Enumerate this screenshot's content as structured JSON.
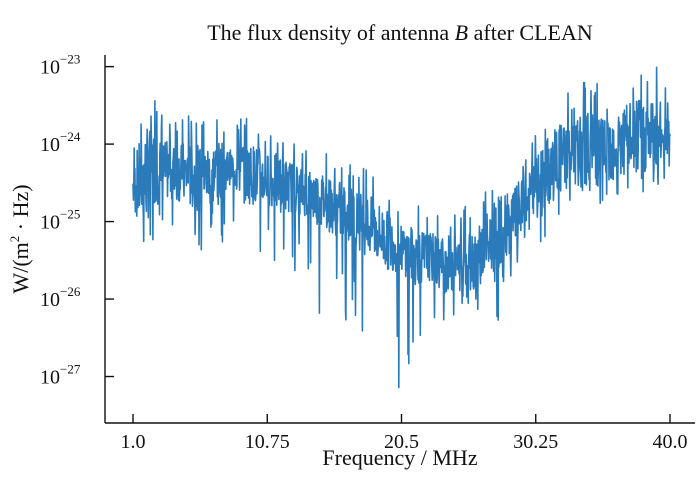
{
  "chart_data": {
    "type": "line",
    "title": "The flux density of antenna B after CLEAN",
    "title_plain": "The flux density of antenna ",
    "title_italic": "B",
    "title_after": " after CLEAN",
    "xlabel": "Frequency / MHz",
    "ylabel_prefix": "W/(m",
    "ylabel_sup": "2",
    "ylabel_suffix": " · Hz)",
    "xlim": [
      1.0,
      40.0
    ],
    "yscale": "log",
    "ylim_log10": [
      -27.6,
      -22.85
    ],
    "x_ticks": [
      {
        "value": 1.0,
        "label": "1.0"
      },
      {
        "value": 10.75,
        "label": "10.75"
      },
      {
        "value": 20.5,
        "label": "20.5"
      },
      {
        "value": 30.25,
        "label": "30.25"
      },
      {
        "value": 40.0,
        "label": "40.0"
      }
    ],
    "y_ticks": [
      {
        "exp": -23,
        "base": "10",
        "sup": "−23"
      },
      {
        "exp": -24,
        "base": "10",
        "sup": "−24"
      },
      {
        "exp": -25,
        "base": "10",
        "sup": "−25"
      },
      {
        "exp": -26,
        "base": "10",
        "sup": "−26"
      },
      {
        "exp": -27,
        "base": "10",
        "sup": "−27"
      }
    ],
    "series": [
      {
        "name": "antenna B",
        "color": "#2b7bba",
        "note": "flux density (W/(m^2·Hz)) expressed as log10 values; dense noisy trace",
        "x": [
          1.0,
          1.5,
          2.0,
          2.5,
          3.0,
          4.0,
          5.0,
          6.0,
          7.0,
          8.0,
          9.0,
          10.0,
          10.75,
          11.5,
          12.5,
          13.5,
          14.5,
          15.5,
          16.5,
          17.5,
          18.5,
          19.5,
          20.5,
          21.5,
          22.5,
          23.5,
          24.5,
          25.5,
          26.5,
          27.5,
          28.5,
          29.5,
          30.25,
          31.0,
          32.0,
          33.0,
          34.0,
          35.0,
          36.0,
          37.0,
          38.0,
          39.0,
          40.0
        ],
        "log10_y": [
          -24.55,
          -24.5,
          -24.4,
          -24.3,
          -24.35,
          -24.35,
          -24.4,
          -24.45,
          -24.35,
          -24.3,
          -24.35,
          -24.4,
          -24.45,
          -24.5,
          -24.55,
          -24.6,
          -24.7,
          -24.8,
          -24.9,
          -25.0,
          -25.1,
          -25.25,
          -25.35,
          -25.45,
          -25.45,
          -25.55,
          -25.55,
          -25.5,
          -25.35,
          -25.15,
          -25.0,
          -24.8,
          -24.6,
          -24.4,
          -24.2,
          -24.15,
          -24.1,
          -24.05,
          -24.0,
          -23.95,
          -23.9,
          -23.9,
          -23.85
        ],
        "log10_y_high": [
          -23.95,
          -23.5,
          -23.25,
          -23.4,
          -23.6,
          -23.7,
          -23.6,
          -23.7,
          -23.55,
          -23.9,
          -23.6,
          -23.7,
          -23.85,
          -23.8,
          -23.95,
          -24.0,
          -24.05,
          -24.15,
          -24.2,
          -24.3,
          -24.35,
          -24.55,
          -24.8,
          -24.75,
          -24.9,
          -24.85,
          -24.9,
          -24.75,
          -24.6,
          -24.3,
          -24.25,
          -24.05,
          -23.85,
          -23.55,
          -23.3,
          -23.35,
          -23.15,
          -23.2,
          -23.1,
          -23.05,
          -23.0,
          -22.95,
          -23.4
        ],
        "log10_y_low": [
          -25.9,
          -25.55,
          -25.4,
          -25.3,
          -25.25,
          -25.2,
          -25.3,
          -25.5,
          -25.15,
          -25.4,
          -25.5,
          -25.6,
          -25.55,
          -25.65,
          -25.8,
          -26.0,
          -26.5,
          -26.1,
          -26.3,
          -26.4,
          -26.6,
          -26.8,
          -27.3,
          -26.9,
          -26.4,
          -26.35,
          -26.25,
          -26.2,
          -26.3,
          -26.3,
          -26.1,
          -25.85,
          -25.4,
          -25.2,
          -24.95,
          -24.85,
          -24.6,
          -25.0,
          -24.9,
          -24.85,
          -24.75,
          -24.7,
          -24.65
        ]
      }
    ]
  }
}
